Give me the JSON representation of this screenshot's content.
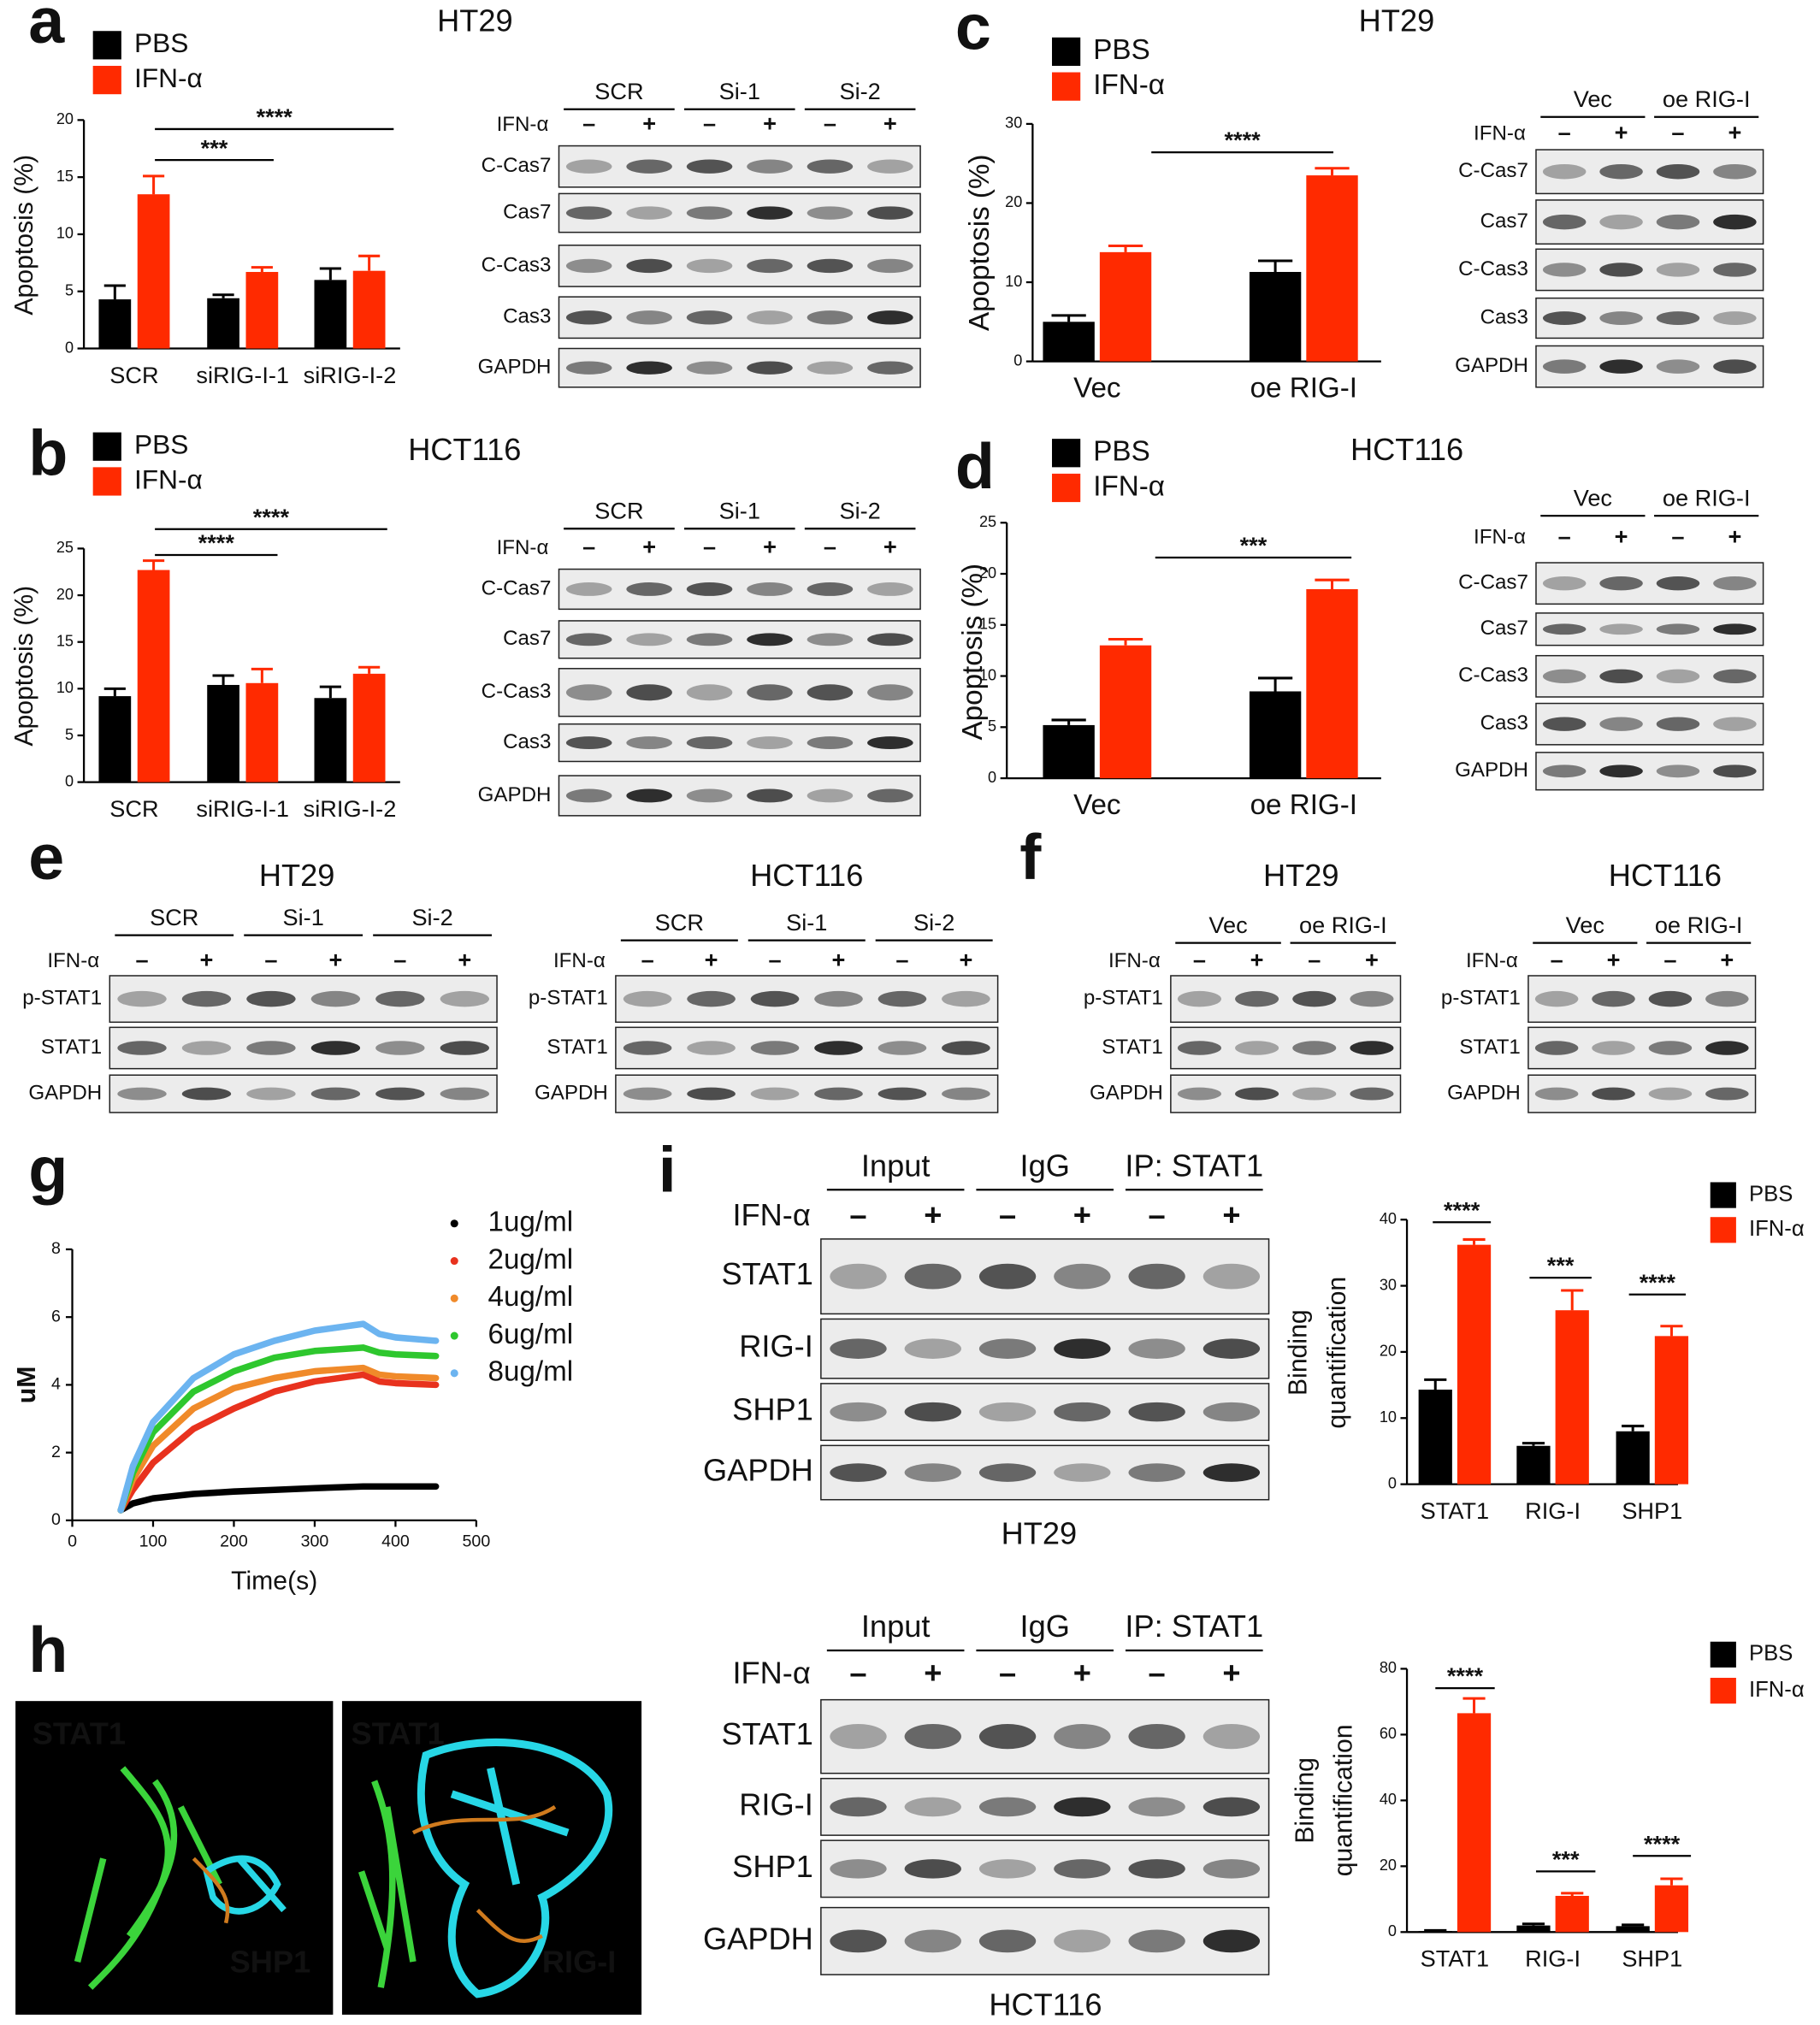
{
  "panel_letters": [
    "a",
    "b",
    "c",
    "d",
    "e",
    "f",
    "g",
    "i",
    "h"
  ],
  "chart_data": [
    {
      "type": "bar",
      "title": "HT29",
      "ylabel": "Apoptosis (%)",
      "categories": [
        "SCR",
        "siRIG-I-1",
        "siRIG-I-2"
      ],
      "series": [
        {
          "name": "PBS",
          "color": "#000000",
          "values": [
            4.3,
            4.4,
            6.0
          ],
          "errors": [
            1.2,
            0.3,
            1.0
          ]
        },
        {
          "name": "IFN-α",
          "color": "#ff2a00",
          "values": [
            13.5,
            6.7,
            6.8
          ],
          "errors": [
            1.6,
            0.4,
            1.3
          ]
        }
      ],
      "ylim": [
        0,
        20
      ],
      "yticks": [
        0,
        5,
        10,
        15,
        20
      ],
      "annotations": [
        "***",
        "****"
      ]
    },
    {
      "type": "bar",
      "title": "HCT116",
      "ylabel": "Apoptosis (%)",
      "categories": [
        "SCR",
        "siRIG-I-1",
        "siRIG-I-2"
      ],
      "series": [
        {
          "name": "PBS",
          "color": "#000000",
          "values": [
            9.2,
            10.4,
            9.0
          ],
          "errors": [
            0.8,
            1.0,
            1.2
          ]
        },
        {
          "name": "IFN-α",
          "color": "#ff2a00",
          "values": [
            22.7,
            10.6,
            11.6
          ],
          "errors": [
            1.0,
            1.5,
            0.7
          ]
        }
      ],
      "ylim": [
        0,
        25
      ],
      "yticks": [
        0,
        5,
        10,
        15,
        20,
        25
      ],
      "annotations": [
        "****",
        "****"
      ]
    },
    {
      "type": "bar",
      "title": "HT29",
      "ylabel": "Apoptosis (%)",
      "categories": [
        "Vec",
        "oe RIG-I"
      ],
      "series": [
        {
          "name": "PBS",
          "color": "#000000",
          "values": [
            5.0,
            11.3
          ],
          "errors": [
            0.8,
            1.4
          ]
        },
        {
          "name": "IFN-α",
          "color": "#ff2a00",
          "values": [
            13.8,
            23.5
          ],
          "errors": [
            0.8,
            0.9
          ]
        }
      ],
      "ylim": [
        0,
        30
      ],
      "yticks": [
        0,
        10,
        20,
        30
      ],
      "annotations": [
        "****"
      ]
    },
    {
      "type": "bar",
      "title": "HCT116",
      "ylabel": "Apoptosis (%)",
      "categories": [
        "Vec",
        "oe RIG-I"
      ],
      "series": [
        {
          "name": "PBS",
          "color": "#000000",
          "values": [
            5.2,
            8.5
          ],
          "errors": [
            0.5,
            1.3
          ]
        },
        {
          "name": "IFN-α",
          "color": "#ff2a00",
          "values": [
            13.0,
            18.5
          ],
          "errors": [
            0.6,
            0.9
          ]
        }
      ],
      "ylim": [
        0,
        25
      ],
      "yticks": [
        0,
        5,
        10,
        15,
        20,
        25
      ],
      "annotations": [
        "***"
      ]
    },
    {
      "type": "line",
      "xlabel": "Time(s)",
      "ylabel": "uM",
      "x": [
        60,
        75,
        100,
        150,
        200,
        250,
        300,
        360,
        380,
        400,
        450
      ],
      "series": [
        {
          "name": "1ug/ml",
          "color": "#000000",
          "values": [
            0.3,
            0.5,
            0.65,
            0.78,
            0.85,
            0.9,
            0.95,
            1.0,
            1.0,
            1.0,
            1.0
          ]
        },
        {
          "name": "2ug/ml",
          "color": "#e8321e",
          "values": [
            0.3,
            0.9,
            1.7,
            2.7,
            3.3,
            3.8,
            4.1,
            4.3,
            4.1,
            4.05,
            4.0
          ]
        },
        {
          "name": "4ug/ml",
          "color": "#f08a2a",
          "values": [
            0.3,
            1.2,
            2.2,
            3.3,
            3.9,
            4.2,
            4.4,
            4.5,
            4.3,
            4.25,
            4.2
          ]
        },
        {
          "name": "6ug/ml",
          "color": "#2ec72e",
          "values": [
            0.3,
            1.4,
            2.6,
            3.8,
            4.4,
            4.8,
            5.0,
            5.1,
            4.95,
            4.9,
            4.85
          ]
        },
        {
          "name": "8ug/ml",
          "color": "#6cb4f0",
          "values": [
            0.3,
            1.6,
            2.9,
            4.2,
            4.9,
            5.3,
            5.6,
            5.8,
            5.5,
            5.4,
            5.3
          ]
        }
      ],
      "xlim": [
        0,
        500
      ],
      "xticks": [
        0,
        100,
        200,
        300,
        400,
        500
      ],
      "ylim": [
        0,
        8
      ],
      "yticks": [
        0,
        2,
        4,
        6,
        8
      ]
    },
    {
      "type": "bar",
      "ylabel": [
        "Binding",
        "quantification"
      ],
      "categories": [
        "STAT1",
        "RIG-I",
        "SHP1"
      ],
      "series": [
        {
          "name": "PBS",
          "color": "#000000",
          "values": [
            14.3,
            5.8,
            8.0
          ],
          "errors": [
            1.5,
            0.4,
            0.8
          ]
        },
        {
          "name": "IFN-α",
          "color": "#ff2a00",
          "values": [
            36.2,
            26.3,
            22.4
          ],
          "errors": [
            0.8,
            3.0,
            1.5
          ]
        }
      ],
      "ylim": [
        0,
        40
      ],
      "yticks": [
        0,
        10,
        20,
        30,
        40
      ],
      "annotations": [
        "****",
        "***",
        "****"
      ]
    },
    {
      "type": "bar",
      "ylabel": [
        "Binding",
        "quantification"
      ],
      "categories": [
        "STAT1",
        "RIG-I",
        "SHP1"
      ],
      "series": [
        {
          "name": "PBS",
          "color": "#000000",
          "values": [
            0.3,
            2.0,
            1.8
          ],
          "errors": [
            0.2,
            0.5,
            0.4
          ]
        },
        {
          "name": "IFN-α",
          "color": "#ff2a00",
          "values": [
            66.5,
            11.0,
            14.2
          ],
          "errors": [
            4.5,
            0.8,
            2.0
          ]
        }
      ],
      "ylim": [
        0,
        80
      ],
      "yticks": [
        0,
        20,
        40,
        60,
        80
      ],
      "annotations": [
        "****",
        "***",
        "****"
      ]
    }
  ],
  "blots": [
    {
      "treatment": "IFN-α",
      "groups": [
        "SCR",
        "Si-1",
        "Si-2"
      ],
      "signs": [
        "–",
        "+",
        "–",
        "+",
        "–",
        "+"
      ],
      "rows": [
        "C-Cas7",
        "Cas7",
        "C-Cas3",
        "Cas3",
        "GAPDH"
      ]
    },
    {
      "treatment": "IFN-α",
      "groups": [
        "SCR",
        "Si-1",
        "Si-2"
      ],
      "signs": [
        "–",
        "+",
        "–",
        "+",
        "–",
        "+"
      ],
      "rows": [
        "C-Cas7",
        "Cas7",
        "C-Cas3",
        "Cas3",
        "GAPDH"
      ]
    },
    {
      "treatment": "IFN-α",
      "groups": [
        "Vec",
        "oe RIG-I"
      ],
      "signs": [
        "–",
        "+",
        "–",
        "+"
      ],
      "rows": [
        "C-Cas7",
        "Cas7",
        "C-Cas3",
        "Cas3",
        "GAPDH"
      ]
    },
    {
      "treatment": "IFN-α",
      "groups": [
        "Vec",
        "oe RIG-I"
      ],
      "signs": [
        "–",
        "+",
        "–",
        "+"
      ],
      "rows": [
        "C-Cas7",
        "Cas7",
        "C-Cas3",
        "Cas3",
        "GAPDH"
      ]
    },
    {
      "title": "HT29",
      "treatment": "IFN-α",
      "groups": [
        "SCR",
        "Si-1",
        "Si-2"
      ],
      "signs": [
        "–",
        "+",
        "–",
        "+",
        "–",
        "+"
      ],
      "rows": [
        "p-STAT1",
        "STAT1",
        "GAPDH"
      ]
    },
    {
      "title": "HCT116",
      "treatment": "IFN-α",
      "groups": [
        "SCR",
        "Si-1",
        "Si-2"
      ],
      "signs": [
        "–",
        "+",
        "–",
        "+",
        "–",
        "+"
      ],
      "rows": [
        "p-STAT1",
        "STAT1",
        "GAPDH"
      ]
    },
    {
      "title": "HT29",
      "treatment": "IFN-α",
      "groups": [
        "Vec",
        "oe RIG-I"
      ],
      "signs": [
        "–",
        "+",
        "–",
        "+"
      ],
      "rows": [
        "p-STAT1",
        "STAT1",
        "GAPDH"
      ]
    },
    {
      "title": "HCT116",
      "treatment": "IFN-α",
      "groups": [
        "Vec",
        "oe RIG-I"
      ],
      "signs": [
        "–",
        "+",
        "–",
        "+"
      ],
      "rows": [
        "p-STAT1",
        "STAT1",
        "GAPDH"
      ]
    },
    {
      "caption": "HT29",
      "treatment": "IFN-α",
      "groups": [
        "Input",
        "IgG",
        "IP: STAT1"
      ],
      "signs": [
        "–",
        "+",
        "–",
        "+",
        "–",
        "+"
      ],
      "rows": [
        "STAT1",
        "RIG-I",
        "SHP1",
        "GAPDH"
      ]
    },
    {
      "caption": "HCT116",
      "treatment": "IFN-α",
      "groups": [
        "Input",
        "IgG",
        "IP: STAT1"
      ],
      "signs": [
        "–",
        "+",
        "–",
        "+",
        "–",
        "+"
      ],
      "rows": [
        "STAT1",
        "RIG-I",
        "SHP1",
        "GAPDH"
      ]
    }
  ],
  "structures": [
    {
      "labels": [
        "STAT1",
        "SHP1"
      ]
    },
    {
      "labels": [
        "STAT1",
        "RIG-I"
      ]
    }
  ]
}
